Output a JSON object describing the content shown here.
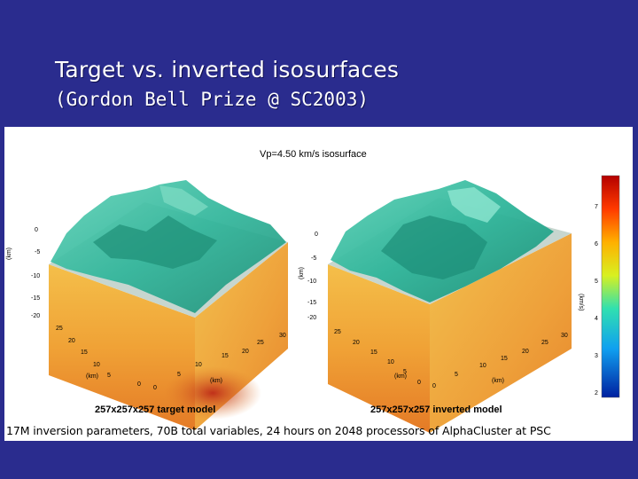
{
  "slide": {
    "title": "Target vs. inverted isosurfaces",
    "subtitle": "(Gordon Bell Prize @ SC2003)"
  },
  "figure": {
    "title": "Vp=4.50 km/s isosurface",
    "left_panel": {
      "caption": "257x257x257 target model",
      "z_label": "(km)",
      "x_label": "(km)",
      "y_label": "(km)",
      "z_ticks": [
        "0",
        "-5",
        "-10",
        "-15",
        "-20"
      ],
      "y_ticks": [
        "25",
        "20",
        "15",
        "10",
        "5",
        "0"
      ],
      "x_ticks": [
        "0",
        "5",
        "10",
        "15",
        "20",
        "25",
        "30"
      ]
    },
    "right_panel": {
      "caption": "257x257x257 inverted model",
      "z_label": "(km)",
      "x_label": "(km)",
      "y_label": "(km)",
      "z_ticks": [
        "0",
        "-5",
        "-10",
        "-15",
        "-20"
      ],
      "y_ticks": [
        "25",
        "20",
        "15",
        "10",
        "5",
        "0"
      ],
      "x_ticks": [
        "0",
        "5",
        "10",
        "15",
        "20",
        "25",
        "30"
      ]
    },
    "colorbar": {
      "label": "(km/s)",
      "ticks": [
        "7",
        "6",
        "5",
        "4",
        "3",
        "2"
      ]
    }
  },
  "footer": {
    "text": "17M inversion parameters, 70B total variables, 24 hours on 2048 processors of AlphaCluster at PSC"
  },
  "colors": {
    "background": "#2a2c8e",
    "isosurface": "#2fb59a",
    "volume_top": "#f2b23c",
    "volume_bottom": "#d65a1c"
  }
}
